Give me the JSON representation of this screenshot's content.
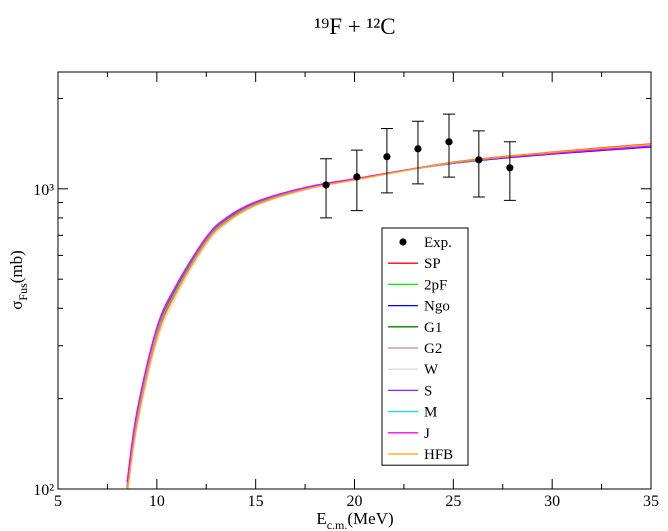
{
  "chart_data": {
    "type": "line",
    "title": "¹⁹F + ¹²C",
    "xlabel": [
      "E",
      "c.m.",
      "(MeV)"
    ],
    "ylabel": [
      "σ",
      "Fus",
      "(mb)"
    ],
    "log_y": true,
    "xlim": [
      5,
      35
    ],
    "xticks": [
      5,
      10,
      15,
      20,
      25,
      30,
      35
    ],
    "xminorticks": [
      7.5,
      12.5,
      17.5,
      22.5,
      27.5,
      32.5
    ],
    "ylim": [
      100,
      2450
    ],
    "yticks": [
      {
        "value": 100,
        "label": "10²"
      },
      {
        "value": 1000,
        "label": "10³"
      }
    ],
    "yminorticks": [
      200,
      300,
      400,
      500,
      600,
      700,
      800,
      900,
      2000
    ],
    "x": [
      8.5,
      9,
      10,
      11,
      12.5,
      13.5,
      15,
      17.5,
      20,
      25,
      30,
      35
    ],
    "experiment": {
      "name": "Exp.",
      "color": "#000000",
      "x": [
        18.56,
        20.12,
        21.64,
        23.21,
        24.78,
        26.29,
        27.86
      ],
      "values": [
        1030,
        1096,
        1279,
        1359,
        1434,
        1249,
        1175
      ],
      "errors": [
        230,
        250,
        310,
        320,
        340,
        310,
        260
      ]
    },
    "series": [
      {
        "name": "SP",
        "color": "#ff0000",
        "values": [
          98,
          167,
          322,
          456,
          666,
          776,
          886,
          998,
          1073,
          1226,
          1325,
          1412
        ]
      },
      {
        "name": "2pF",
        "color": "#00ee00",
        "values": [
          100,
          172,
          330,
          464,
          674,
          784,
          892,
          1001,
          1074,
          1221,
          1315,
          1396
        ]
      },
      {
        "name": "Ngo",
        "color": "#0000ff",
        "values": [
          102,
          175,
          335,
          470,
          680,
          790,
          896,
          1004,
          1075,
          1216,
          1305,
          1378
        ]
      },
      {
        "name": "G1",
        "color": "#008000",
        "values": [
          101,
          173,
          332,
          466,
          676,
          786,
          893,
          1002,
          1074,
          1220,
          1312,
          1392
        ]
      },
      {
        "name": "G2",
        "color": "#bc8f8f",
        "values": [
          100,
          171,
          329,
          462,
          672,
          782,
          890,
          1000,
          1073,
          1222,
          1317,
          1400
        ]
      },
      {
        "name": "W",
        "color": "#dcdcdc",
        "values": [
          94,
          160,
          308,
          440,
          650,
          762,
          876,
          990,
          1068,
          1218,
          1316,
          1400
        ]
      },
      {
        "name": "S",
        "color": "#a020f0",
        "values": [
          106,
          182,
          345,
          480,
          690,
          800,
          905,
          1010,
          1080,
          1220,
          1310,
          1385
        ]
      },
      {
        "name": "M",
        "color": "#00e5ee",
        "values": [
          104,
          179,
          341,
          476,
          686,
          796,
          902,
          1008,
          1079,
          1221,
          1313,
          1390
        ]
      },
      {
        "name": "J",
        "color": "#ff00ff",
        "values": [
          105,
          180,
          343,
          478,
          688,
          798,
          903,
          1009,
          1079,
          1222,
          1312,
          1388
        ]
      },
      {
        "name": "HFB",
        "color": "#ffa500",
        "values": [
          97,
          165,
          318,
          452,
          662,
          772,
          883,
          996,
          1071,
          1224,
          1322,
          1408
        ]
      }
    ]
  }
}
